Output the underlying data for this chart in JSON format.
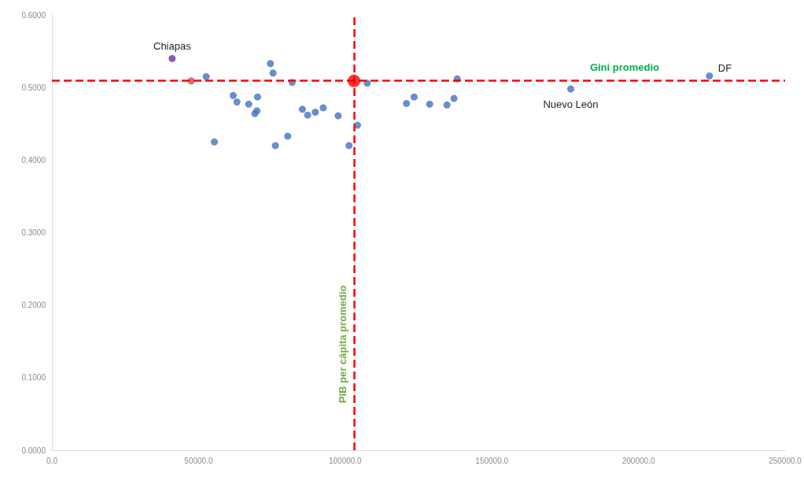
{
  "chart_data": {
    "type": "scatter",
    "marker": "circle",
    "grid": false,
    "xlim": [
      0,
      250000
    ],
    "ylim": [
      0,
      0.6
    ],
    "xticks": [
      {
        "value": 0,
        "label": "0.0"
      },
      {
        "value": 50000,
        "label": "50000.0"
      },
      {
        "value": 100000,
        "label": "100000.0"
      },
      {
        "value": 150000,
        "label": "150000.0"
      },
      {
        "value": 200000,
        "label": "200000.0"
      },
      {
        "value": 250000,
        "label": "250000.0"
      }
    ],
    "yticks": [
      {
        "value": 0,
        "label": "0.0000"
      },
      {
        "value": 0.1,
        "label": "0.1000"
      },
      {
        "value": 0.2,
        "label": "0.2000"
      },
      {
        "value": 0.3,
        "label": "0.3000"
      },
      {
        "value": 0.4,
        "label": "0.4000"
      },
      {
        "value": 0.5,
        "label": "0.5000"
      },
      {
        "value": 0.6,
        "label": "0.6000"
      }
    ],
    "series": [
      {
        "x": [
          41000,
          47500,
          52600,
          74500,
          75400,
          81900,
          107500,
          61800,
          63100,
          67100,
          70100,
          69900,
          69200,
          55400,
          76200,
          80400,
          85400,
          87200,
          89800,
          92500,
          97600,
          101300,
          104200,
          120900,
          123500,
          128800,
          134700,
          137100,
          138200,
          176900,
          224200
        ],
        "values": [
          0.54,
          0.509,
          0.515,
          0.533,
          0.52,
          0.507,
          0.506,
          0.489,
          0.48,
          0.477,
          0.487,
          0.468,
          0.464,
          0.425,
          0.42,
          0.433,
          0.47,
          0.462,
          0.466,
          0.472,
          0.461,
          0.42,
          0.448,
          0.478,
          0.487,
          0.477,
          0.476,
          0.485,
          0.512,
          0.498,
          0.516
        ],
        "colors": [
          "#7030a0",
          "#c0504d",
          "#4472c4",
          "#4472c4",
          "#4472c4",
          "#4472c4",
          "#4472c4",
          "#4472c4",
          "#4472c4",
          "#4472c4",
          "#4472c4",
          "#4472c4",
          "#4472c4",
          "#4472c4",
          "#4472c4",
          "#4472c4",
          "#4472c4",
          "#4472c4",
          "#4472c4",
          "#4472c4",
          "#4472c4",
          "#4472c4",
          "#4472c4",
          "#4472c4",
          "#4472c4",
          "#4472c4",
          "#4472c4",
          "#4472c4",
          "#4472c4",
          "#4472c4",
          "#4472c4"
        ]
      },
      {
        "color": "#ff0000",
        "x": [
          103000
        ],
        "values": [
          0.509
        ]
      }
    ],
    "ref_lines": [
      {
        "axis": "x",
        "value": 103000,
        "label": "PIB per cápita promedio",
        "color": "#ff0000",
        "line_style": "dashed"
      },
      {
        "axis": "y",
        "value": 0.509,
        "label": "Gini promedio",
        "color": "#ff0000",
        "line_style": "dashed"
      }
    ],
    "annotations": [
      {
        "text": "Chiapas",
        "x": 41000,
        "y": 0.54
      },
      {
        "text": "Nuevo León",
        "x": 176900,
        "y": 0.498
      },
      {
        "text": "DF",
        "x": 224200,
        "y": 0.516
      }
    ]
  }
}
